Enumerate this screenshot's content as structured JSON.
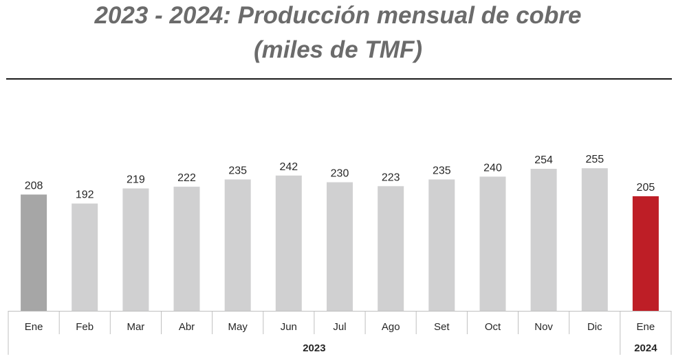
{
  "title": {
    "line1": "2023 - 2024: Producción mensual de cobre",
    "line2": "(miles de TMF)"
  },
  "colors": {
    "first_bar": "#a6a6a6",
    "bar": "#d0d0d1",
    "highlight_bar": "#be1e26",
    "axis": "#bfbfbf",
    "title": "#6b6b6b"
  },
  "chart_data": {
    "type": "bar",
    "categories": [
      "Ene",
      "Feb",
      "Mar",
      "Abr",
      "May",
      "Jun",
      "Jul",
      "Ago",
      "Set",
      "Oct",
      "Nov",
      "Dic",
      "Ene"
    ],
    "values": [
      208,
      192,
      219,
      222,
      235,
      242,
      230,
      223,
      235,
      240,
      254,
      255,
      205
    ],
    "groups": [
      {
        "label": "2023",
        "from": 0,
        "to": 11
      },
      {
        "label": "2024",
        "from": 12,
        "to": 12
      }
    ],
    "ylim": [
      0,
      270
    ],
    "grid": false,
    "legend": "none"
  }
}
